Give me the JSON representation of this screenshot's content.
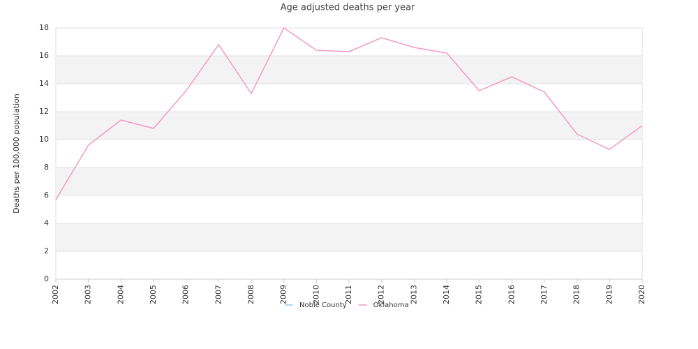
{
  "chart_data": {
    "type": "line",
    "title": "Age adjusted deaths per year",
    "ylabel": "Deaths per 100,000 population",
    "x": [
      2002,
      2003,
      2004,
      2005,
      2006,
      2007,
      2008,
      2009,
      2010,
      2011,
      2012,
      2013,
      2014,
      2015,
      2016,
      2017,
      2018,
      2019,
      2020
    ],
    "xlim": [
      2002,
      2020
    ],
    "xticks": [
      2002,
      2003,
      2004,
      2005,
      2006,
      2007,
      2008,
      2009,
      2010,
      2011,
      2012,
      2013,
      2014,
      2015,
      2016,
      2017,
      2018,
      2019,
      2020
    ],
    "ylim": [
      0,
      18
    ],
    "yticks": [
      0,
      2,
      4,
      6,
      8,
      10,
      12,
      14,
      16,
      18
    ],
    "grid": true,
    "legend": "bottom",
    "series": [
      {
        "name": "Noble County",
        "color": "#9ecae9",
        "values": [
          null,
          null,
          null,
          null,
          null,
          null,
          null,
          null,
          null,
          null,
          null,
          null,
          null,
          null,
          null,
          null,
          null,
          null,
          null
        ]
      },
      {
        "name": "Oklahoma",
        "color": "#f39bc4",
        "values": [
          5.7,
          9.6,
          11.4,
          10.8,
          13.5,
          16.8,
          13.3,
          18.0,
          16.4,
          16.3,
          17.3,
          16.6,
          16.2,
          13.5,
          14.5,
          13.4,
          10.4,
          9.3,
          11.0
        ]
      }
    ]
  }
}
